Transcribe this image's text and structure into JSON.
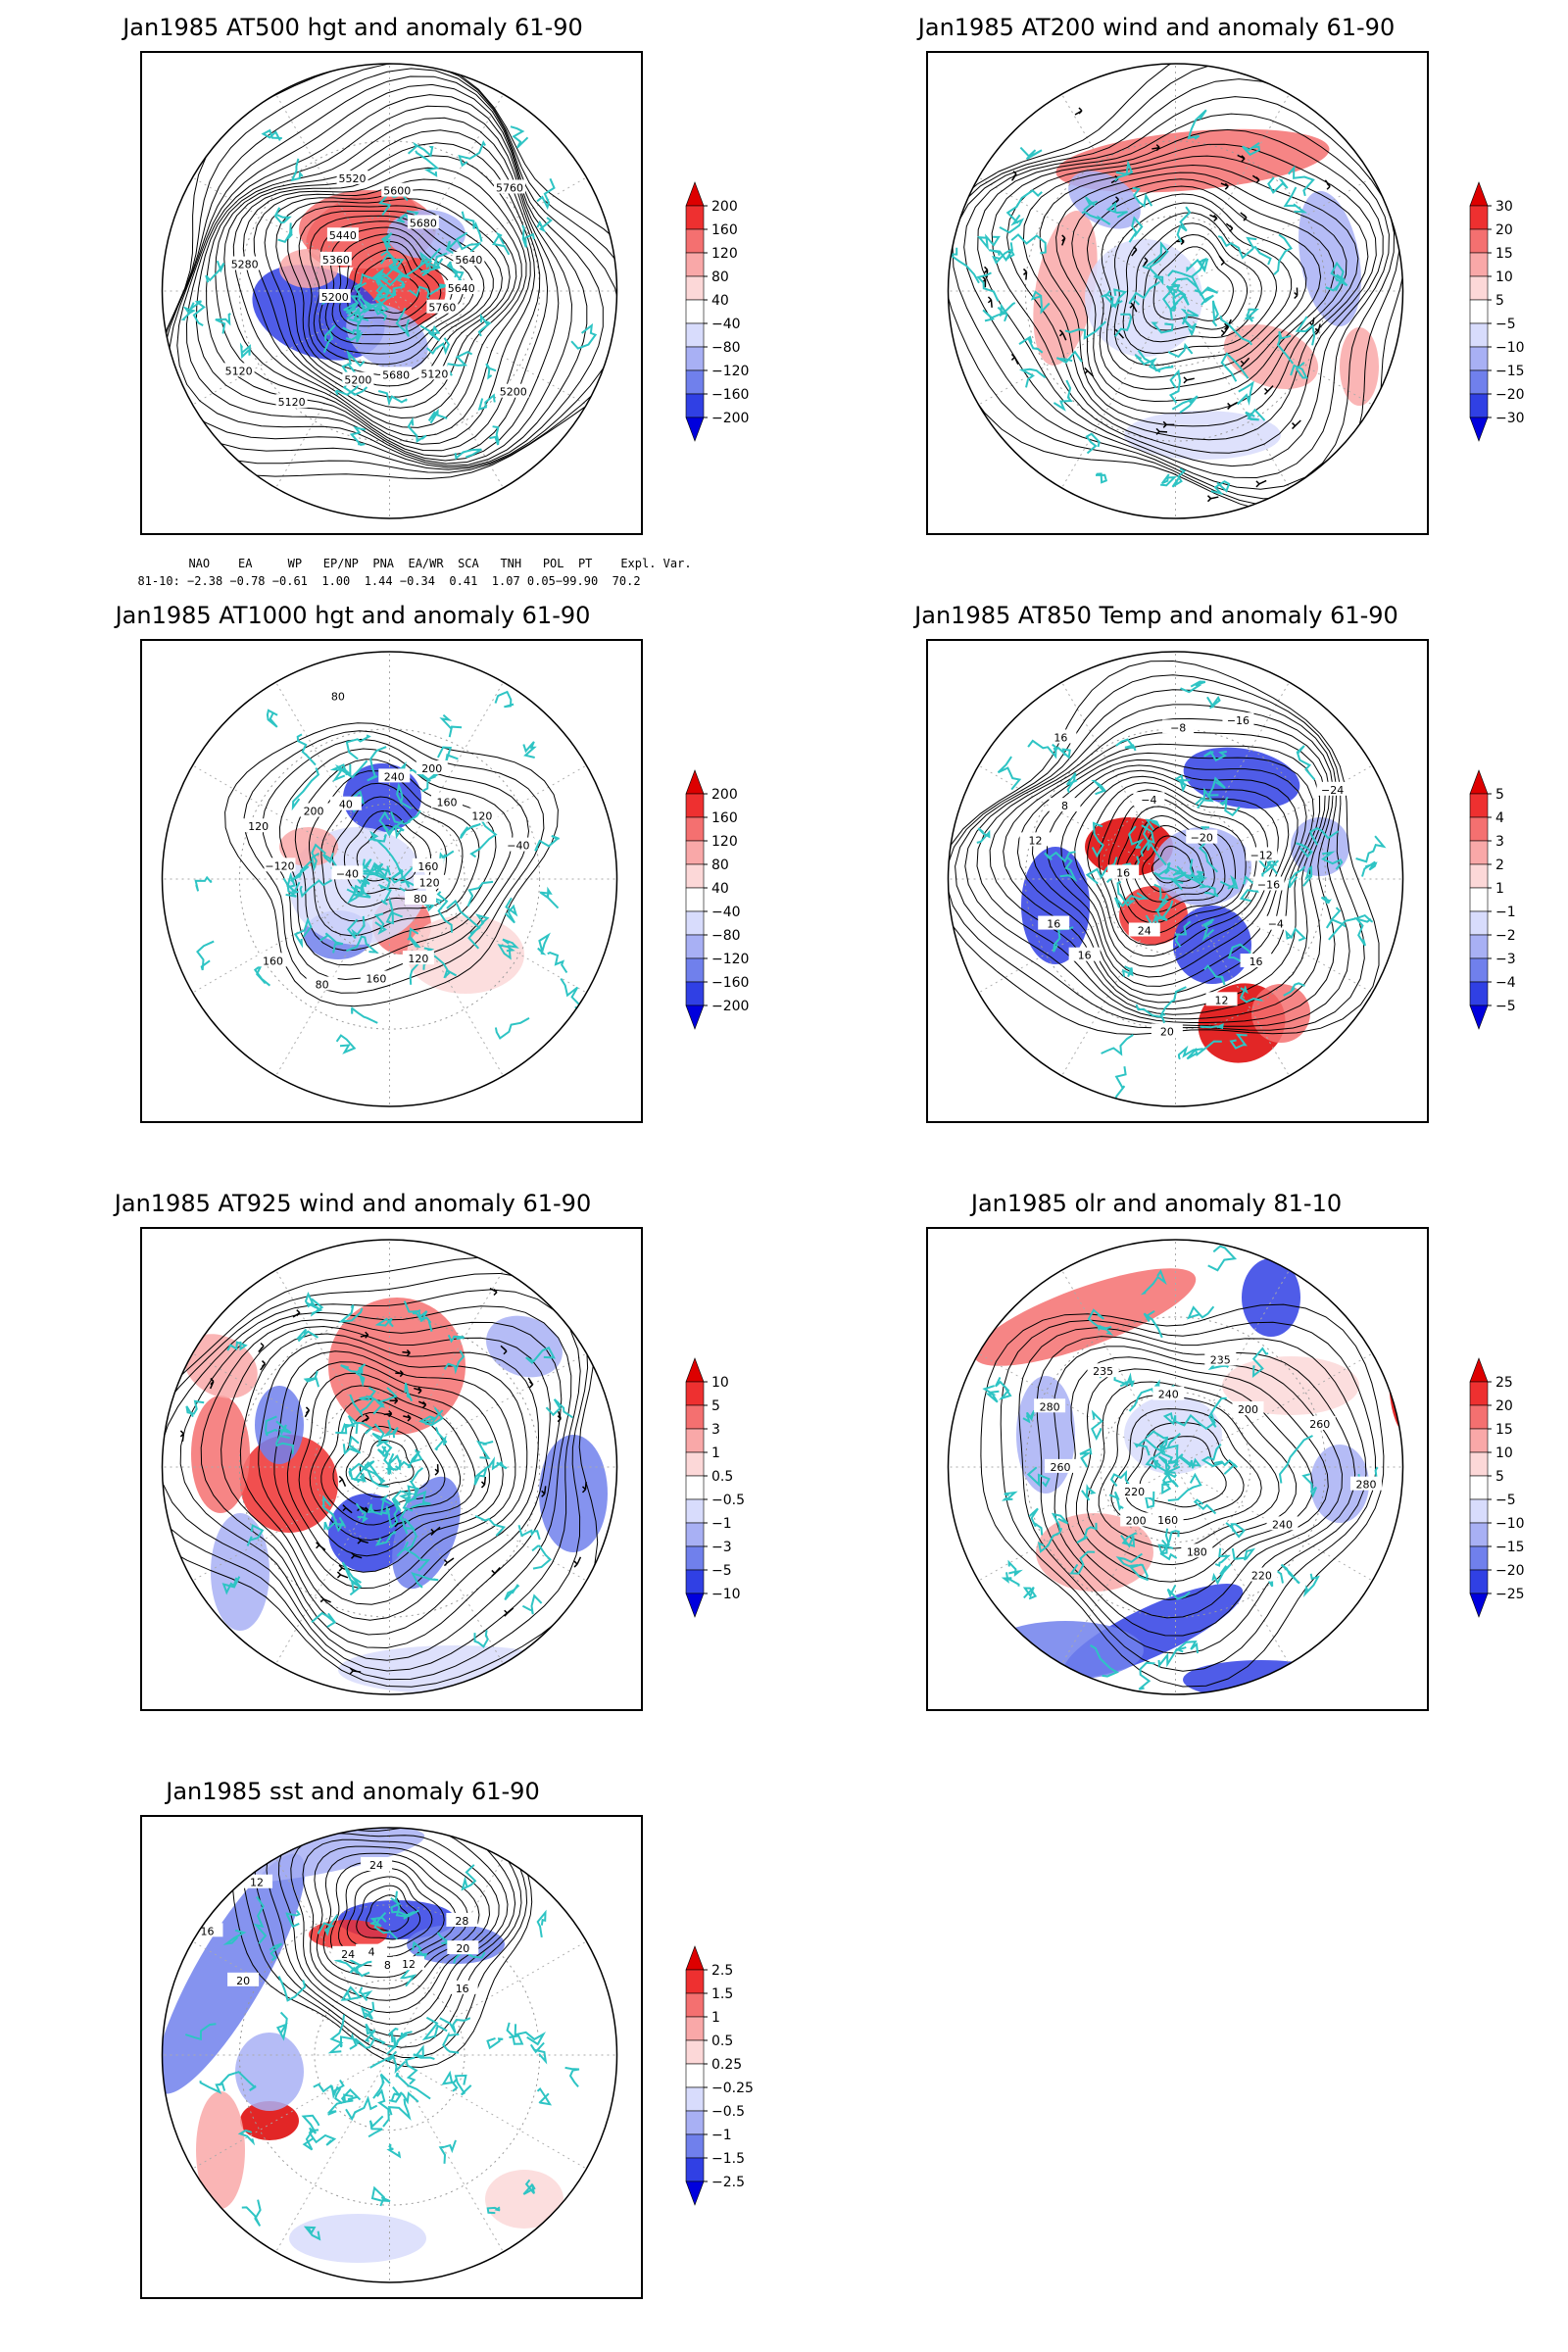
{
  "panels": [
    {
      "id": "p1",
      "title": "Jan1985 AT500 hgt and anomaly 61-90",
      "colorbar": [
        "200",
        "160",
        "120",
        "80",
        "40",
        "−40",
        "−80",
        "−120",
        "−160",
        "−200"
      ],
      "contour_labels": [
        "5640",
        "5760",
        "5200",
        "5120",
        "5680",
        "5200",
        "5120",
        "5120",
        "5200",
        "5280",
        "5360",
        "5440",
        "5520",
        "5600",
        "5680",
        "5760",
        "5640"
      ]
    },
    {
      "id": "p2",
      "title": "Jan1985 AT200 wind and anomaly 61-90",
      "colorbar": [
        "30",
        "20",
        "15",
        "10",
        "5",
        "−5",
        "−10",
        "−15",
        "−20",
        "−30"
      ],
      "contour_labels": []
    },
    {
      "id": "p3",
      "title": "Jan1985 AT1000 hgt and anomaly 61-90",
      "colorbar": [
        "200",
        "160",
        "120",
        "80",
        "40",
        "−40",
        "−80",
        "−120",
        "−160",
        "−200"
      ],
      "contour_labels": [
        "80",
        "160",
        "−40",
        "−120",
        "120",
        "200",
        "40",
        "80",
        "240",
        "200",
        "160",
        "120",
        "−40",
        "160",
        "120",
        "80",
        "120",
        "160"
      ]
    },
    {
      "id": "p4",
      "title": "Jan1985 AT850 Temp and anomaly 61-90",
      "colorbar": [
        "5",
        "4",
        "3",
        "2",
        "1",
        "−1",
        "−2",
        "−3",
        "−4",
        "−5"
      ],
      "contour_labels": [
        "16",
        "12",
        "8",
        "16",
        "−4",
        "−8",
        "−16",
        "−20",
        "−24",
        "−12",
        "−16",
        "−4",
        "16",
        "12",
        "20",
        "24",
        "16",
        "16"
      ]
    },
    {
      "id": "p5",
      "title": "Jan1985 AT925 wind and anomaly 61-90",
      "colorbar": [
        "10",
        "5",
        "3",
        "1",
        "0.5",
        "−0.5",
        "−1",
        "−3",
        "−5",
        "−10"
      ],
      "contour_labels": []
    },
    {
      "id": "p6",
      "title": "Jan1985 olr and anomaly 81-10",
      "colorbar": [
        "25",
        "20",
        "15",
        "10",
        "5",
        "−5",
        "−10",
        "−15",
        "−20",
        "−25"
      ],
      "contour_labels": [
        "235",
        "200",
        "260",
        "280",
        "240",
        "220",
        "180",
        "160",
        "200",
        "220",
        "260",
        "280",
        "235",
        "240"
      ]
    },
    {
      "id": "p7",
      "title": "Jan1985 sst and anomaly 61-90",
      "colorbar": [
        "2.5",
        "1.5",
        "1",
        "0.5",
        "0.25",
        "−0.25",
        "−0.5",
        "−1",
        "−1.5",
        "−2.5"
      ],
      "contour_labels": [
        "24",
        "28",
        "20",
        "16",
        "12",
        "8",
        "4",
        "24",
        "20",
        "16",
        "12",
        "4",
        "28",
        "24",
        "20",
        "16",
        "28"
      ]
    }
  ],
  "teleconnections": {
    "header": [
      "NAO",
      "EA",
      "WP",
      "EP/NP",
      "PNA",
      "EA/WR",
      "SCA",
      "TNH",
      "POL",
      "PT",
      "Expl. Var."
    ],
    "row_label": "81-10:",
    "values": [
      "−2.38",
      "−0.78",
      "−0.61",
      "1.00",
      "1.44",
      "−0.34",
      "0.41",
      "1.07",
      "0.05",
      "−99.90",
      "70.2"
    ]
  },
  "colors": {
    "coast": "#2ec4c4",
    "cbar": [
      "#dd0000",
      "#ee3030",
      "#f47070",
      "#f9a8a8",
      "#fcd8d8",
      "#ffffff",
      "#d8dcfc",
      "#a8b0f4",
      "#7080ec",
      "#3040e4",
      "#0000dd"
    ]
  }
}
